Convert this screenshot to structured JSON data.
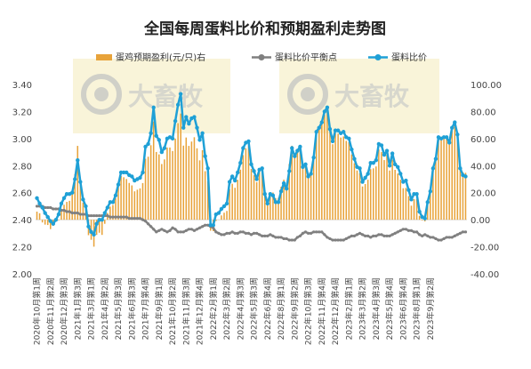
{
  "chart_data": {
    "type": "bar",
    "title": "全国每周蛋料比价和预期盈利走势图",
    "legend": {
      "position": "top",
      "entries": [
        "蛋鸡预期盈利(元/只)右",
        "蛋料比价平衡点",
        "蛋料比价"
      ]
    },
    "watermark": "大畜牧",
    "left_axis": {
      "ylim": [
        2.0,
        3.4
      ],
      "ticks": [
        "2.00",
        "2.20",
        "2.40",
        "2.60",
        "2.80",
        "3.00",
        "3.20",
        "3.40"
      ]
    },
    "right_axis": {
      "ylim": [
        -40.0,
        100.0
      ],
      "ticks": [
        "-40.00",
        "-20.00",
        "0.00",
        "20.00",
        "40.00",
        "60.00",
        "80.00",
        "100.00"
      ]
    },
    "category_labels": [
      "2020年10月第1周",
      "2020年11月第2周",
      "2020年12月第3周",
      "2021年1月第3周",
      "2021年3月第1周",
      "2021年4月第2周",
      "2021年5月第3周",
      "2021年6月第3周",
      "2021年7月第4周",
      "2021年9月第1周",
      "2021年10月第2周",
      "2021年11月第3周",
      "2021年12月第4周",
      "2022年2月第1周",
      "2022年3月第2周",
      "2022年4月第3周",
      "2022年5月第3周",
      "2022年6月第4周",
      "2022年8月第1周",
      "2022年9月第2周",
      "2022年10月第3周",
      "2022年11月第4周",
      "2022年12月第4周",
      "2023年2月第1周",
      "2023年3月第2周",
      "2023年4月第3周",
      "2023年5月第4周",
      "2023年6月第4周",
      "2023年8月第1周",
      "2023年9月第2周"
    ],
    "category_label_step": 5,
    "series": [
      {
        "name": "蛋鸡预期盈利(元/只)右",
        "type": "bar",
        "axis": "right",
        "color": "#e8a33a",
        "values": [
          6.0,
          4.8,
          -2.0,
          -3.6,
          -3.9,
          -6.9,
          -4.5,
          -1.3,
          -0.4,
          8.1,
          11.1,
          13.2,
          14.0,
          19.7,
          33.7,
          54.6,
          29.2,
          12.7,
          7.8,
          -11.4,
          -14.8,
          -19.9,
          -11.2,
          -9.6,
          -11.2,
          -3.0,
          5.0,
          9.7,
          10.9,
          16.0,
          24.5,
          32.3,
          31.4,
          30.1,
          27.2,
          25.4,
          21.0,
          22.2,
          23.2,
          27.1,
          45.1,
          46.6,
          55.1,
          72.6,
          50.1,
          48.3,
          41.2,
          44.6,
          53.4,
          53.4,
          50.8,
          60.0,
          71.4,
          78.5,
          54.8,
          60.8,
          54.6,
          57.8,
          61.0,
          52.8,
          43.9,
          51.4,
          35.9,
          28.5,
          -8.1,
          -8.4,
          -0.9,
          0.1,
          3.2,
          5.2,
          6.5,
          22.7,
          26.6,
          23.6,
          29.5,
          37.0,
          47.8,
          52.8,
          54.4,
          37.5,
          32.9,
          27.8,
          36.0,
          36.6,
          20.4,
          13.9,
          19.9,
          20.1,
          15.9,
          16.2,
          24.4,
          29.6,
          26.7,
          41.2,
          54.7,
          48.8,
          51.6,
          54.9,
          40.6,
          41.3,
          33.3,
          34.4,
          45.1,
          63.9,
          67.5,
          70.9,
          77.8,
          80.8,
          66.1,
          55.8,
          63.8,
          63.6,
          60.8,
          61.6,
          58.3,
          57.4,
          48.3,
          41.8,
          36.4,
          34.4,
          24.6,
          26.4,
          29.6,
          37.4,
          38.0,
          39.4,
          52.0,
          50.0,
          44.1,
          48.3,
          36.4,
          44.4,
          36.9,
          34.2,
          29.6,
          23.3,
          23.5,
          17.5,
          10.4,
          15.2,
          15.2,
          2.9,
          -0.5,
          -1.2,
          11.4,
          19.6,
          36.3,
          44.9,
          60.7,
          61.4,
          61.6,
          61.4,
          56.6,
          66.8,
          71.9,
          63.8,
          39.1,
          35.2,
          34.7
        ]
      },
      {
        "name": "蛋料比价平衡点",
        "type": "line",
        "axis": "left",
        "color": "#808080",
        "values": [
          2.5,
          2.5,
          2.5,
          2.49,
          2.49,
          2.49,
          2.48,
          2.48,
          2.48,
          2.47,
          2.47,
          2.46,
          2.46,
          2.45,
          2.45,
          2.45,
          2.44,
          2.44,
          2.44,
          2.43,
          2.43,
          2.43,
          2.43,
          2.43,
          2.43,
          2.43,
          2.43,
          2.42,
          2.42,
          2.42,
          2.42,
          2.42,
          2.42,
          2.42,
          2.41,
          2.41,
          2.41,
          2.41,
          2.41,
          2.4,
          2.39,
          2.37,
          2.35,
          2.33,
          2.31,
          2.32,
          2.33,
          2.32,
          2.31,
          2.32,
          2.34,
          2.33,
          2.31,
          2.31,
          2.31,
          2.32,
          2.33,
          2.33,
          2.32,
          2.33,
          2.34,
          2.35,
          2.36,
          2.36,
          2.35,
          2.34,
          2.31,
          2.3,
          2.29,
          2.29,
          2.3,
          2.3,
          2.31,
          2.3,
          2.3,
          2.31,
          2.31,
          2.3,
          2.3,
          2.29,
          2.3,
          2.3,
          2.29,
          2.28,
          2.28,
          2.28,
          2.29,
          2.28,
          2.27,
          2.27,
          2.27,
          2.26,
          2.26,
          2.25,
          2.25,
          2.25,
          2.27,
          2.28,
          2.3,
          2.31,
          2.3,
          2.3,
          2.31,
          2.31,
          2.31,
          2.31,
          2.29,
          2.27,
          2.26,
          2.25,
          2.25,
          2.25,
          2.25,
          2.25,
          2.26,
          2.27,
          2.28,
          2.28,
          2.29,
          2.3,
          2.29,
          2.28,
          2.28,
          2.27,
          2.28,
          2.28,
          2.29,
          2.29,
          2.28,
          2.28,
          2.28,
          2.29,
          2.3,
          2.31,
          2.32,
          2.33,
          2.33,
          2.32,
          2.32,
          2.31,
          2.31,
          2.29,
          2.28,
          2.29,
          2.28,
          2.27,
          2.27,
          2.26,
          2.25,
          2.25,
          2.26,
          2.27,
          2.27,
          2.27,
          2.28,
          2.29,
          2.3,
          2.31,
          2.31
        ]
      },
      {
        "name": "蛋料比价",
        "type": "line",
        "axis": "left",
        "color": "#1fa0d6",
        "values": [
          2.56,
          2.52,
          2.49,
          2.45,
          2.42,
          2.39,
          2.37,
          2.4,
          2.44,
          2.52,
          2.56,
          2.59,
          2.59,
          2.6,
          2.7,
          2.84,
          2.68,
          2.55,
          2.5,
          2.35,
          2.31,
          2.29,
          2.37,
          2.4,
          2.4,
          2.45,
          2.49,
          2.53,
          2.53,
          2.58,
          2.66,
          2.75,
          2.75,
          2.75,
          2.73,
          2.72,
          2.69,
          2.7,
          2.71,
          2.75,
          2.94,
          2.96,
          3.04,
          3.23,
          3.02,
          2.99,
          2.9,
          2.93,
          3.0,
          3.01,
          3.0,
          3.13,
          3.25,
          3.33,
          3.08,
          3.16,
          3.11,
          3.15,
          3.16,
          3.08,
          2.99,
          3.04,
          2.87,
          2.78,
          2.36,
          2.36,
          2.44,
          2.45,
          2.48,
          2.5,
          2.52,
          2.68,
          2.72,
          2.69,
          2.75,
          2.82,
          2.93,
          2.97,
          2.98,
          2.81,
          2.76,
          2.7,
          2.77,
          2.78,
          2.59,
          2.52,
          2.59,
          2.58,
          2.53,
          2.53,
          2.61,
          2.67,
          2.63,
          2.76,
          2.93,
          2.87,
          2.91,
          2.94,
          2.79,
          2.81,
          2.72,
          2.74,
          2.86,
          3.05,
          3.08,
          3.12,
          3.2,
          3.23,
          3.07,
          2.98,
          3.06,
          3.06,
          3.04,
          3.05,
          3.01,
          3.0,
          2.92,
          2.85,
          2.79,
          2.78,
          2.68,
          2.71,
          2.74,
          2.82,
          2.82,
          2.84,
          2.96,
          2.95,
          2.88,
          2.91,
          2.8,
          2.89,
          2.81,
          2.79,
          2.74,
          2.68,
          2.69,
          2.62,
          2.55,
          2.59,
          2.59,
          2.46,
          2.42,
          2.41,
          2.53,
          2.61,
          2.78,
          2.85,
          3.01,
          3.0,
          3.01,
          3.01,
          2.97,
          3.08,
          3.12,
          3.03,
          2.78,
          2.73,
          2.72
        ]
      }
    ]
  }
}
